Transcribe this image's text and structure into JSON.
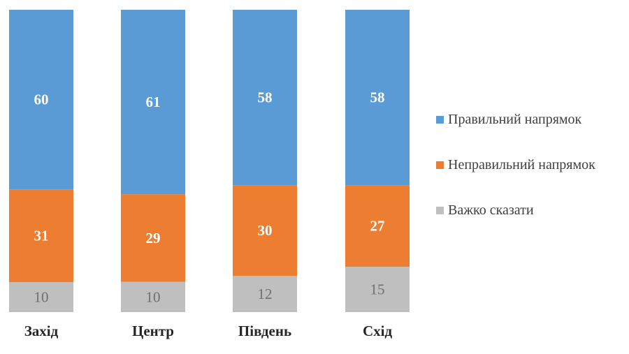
{
  "chart_data": {
    "type": "bar",
    "stacked": true,
    "percent_stacked": true,
    "categories": [
      "Захід",
      "Центр",
      "Південь",
      "Схід"
    ],
    "series": [
      {
        "name": "Важко сказати",
        "color": "#bfbfbf",
        "values": [
          10,
          10,
          12,
          15
        ],
        "label_style": "light"
      },
      {
        "name": "Неправильний напрямок",
        "color": "#ed7d31",
        "values": [
          31,
          29,
          30,
          27
        ],
        "label_style": "bold"
      },
      {
        "name": "Правильний напрямок",
        "color": "#5b9bd5",
        "values": [
          60,
          61,
          58,
          58
        ],
        "label_style": "bold"
      }
    ],
    "legend": [
      "Правильний напрямок",
      "Неправильний напрямок",
      "Важко сказати"
    ],
    "legend_position": "right",
    "title": "",
    "xlabel": "",
    "ylabel": "",
    "grid": false
  }
}
